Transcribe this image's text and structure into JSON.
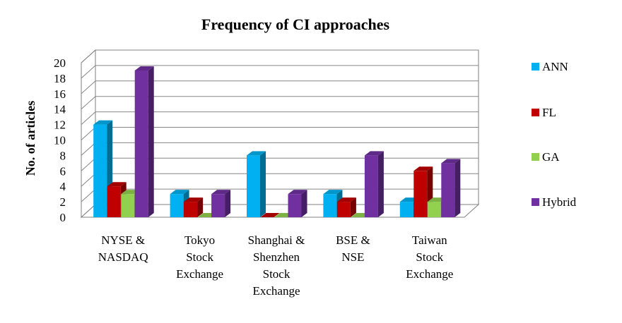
{
  "chart_data": {
    "type": "bar",
    "title": "Frequency of CI approaches",
    "xlabel": "",
    "ylabel": "No. of articles",
    "ylim": [
      0,
      20
    ],
    "yticks": [
      "0",
      "2",
      "4",
      "6",
      "8",
      "10",
      "12",
      "14",
      "16",
      "18",
      "20"
    ],
    "grid": true,
    "legend_position": "right",
    "categories": [
      [
        "NYSE &",
        "NASDAQ"
      ],
      [
        "Tokyo",
        "Stock",
        "Exchange"
      ],
      [
        "Shanghai &",
        "Shenzhen",
        "Stock",
        "Exchange"
      ],
      [
        "BSE &",
        "NSE"
      ],
      [
        "Taiwan",
        "Stock",
        "Exchange"
      ]
    ],
    "series": [
      {
        "name": "ANN",
        "color": "#00B0F0",
        "values": [
          12,
          3,
          8,
          3,
          2
        ]
      },
      {
        "name": "FL",
        "color": "#C00000",
        "values": [
          4,
          2,
          0,
          2,
          6
        ]
      },
      {
        "name": "GA",
        "color": "#92D050",
        "values": [
          3,
          0,
          0,
          0,
          2
        ]
      },
      {
        "name": "Hybrid",
        "color": "#7030A0",
        "values": [
          19,
          3,
          3,
          8,
          7
        ]
      }
    ]
  }
}
